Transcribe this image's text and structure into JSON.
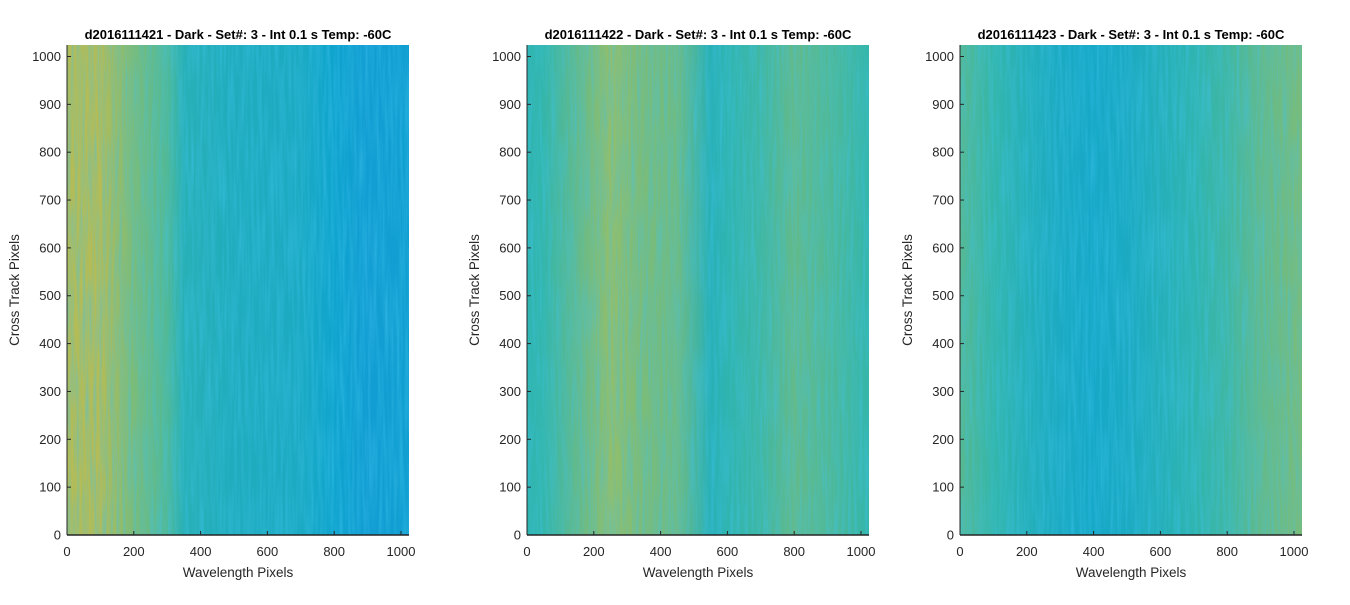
{
  "chart_data": [
    {
      "type": "heatmap",
      "title": "d2016111421 - Dark - Set#: 3 - Int 0.1 s Temp: -60C",
      "xlabel": "Wavelength Pixels",
      "ylabel": "Cross Track Pixels",
      "xlim": [
        0,
        1024
      ],
      "ylim": [
        0,
        1024
      ],
      "xticks": [
        0,
        200,
        400,
        600,
        800,
        1000
      ],
      "yticks": [
        0,
        100,
        200,
        300,
        400,
        500,
        600,
        700,
        800,
        900,
        1000
      ],
      "colormap": "parula",
      "column_intensity_profile": {
        "x": [
          0,
          100,
          200,
          300,
          350,
          500,
          700,
          800,
          900,
          1024
        ],
        "level": [
          0.72,
          0.72,
          0.62,
          0.55,
          0.45,
          0.42,
          0.4,
          0.35,
          0.32,
          0.33
        ]
      }
    },
    {
      "type": "heatmap",
      "title": "d2016111422 - Dark - Set#: 3 - Int 0.1 s Temp: -60C",
      "xlabel": "Wavelength Pixels",
      "ylabel": "Cross Track Pixels",
      "xlim": [
        0,
        1024
      ],
      "ylim": [
        0,
        1024
      ],
      "xticks": [
        0,
        200,
        400,
        600,
        800,
        1000
      ],
      "yticks": [
        0,
        100,
        200,
        300,
        400,
        500,
        600,
        700,
        800,
        900,
        1000
      ],
      "colormap": "parula",
      "column_intensity_profile": {
        "x": [
          0,
          50,
          150,
          250,
          350,
          450,
          550,
          600,
          700,
          800,
          900,
          1024
        ],
        "level": [
          0.48,
          0.5,
          0.58,
          0.66,
          0.62,
          0.6,
          0.45,
          0.48,
          0.52,
          0.58,
          0.55,
          0.5
        ]
      }
    },
    {
      "type": "heatmap",
      "title": "d2016111423 - Dark - Set#: 3 - Int 0.1 s Temp: -60C",
      "xlabel": "Wavelength Pixels",
      "ylabel": "Cross Track Pixels",
      "xlim": [
        0,
        1024
      ],
      "ylim": [
        0,
        1024
      ],
      "xticks": [
        0,
        200,
        400,
        600,
        800,
        1000
      ],
      "yticks": [
        0,
        100,
        200,
        300,
        400,
        500,
        600,
        700,
        800,
        900,
        1000
      ],
      "colormap": "parula",
      "column_intensity_profile": {
        "x": [
          0,
          100,
          200,
          300,
          400,
          500,
          600,
          700,
          800,
          900,
          1024
        ],
        "level": [
          0.56,
          0.5,
          0.44,
          0.4,
          0.38,
          0.4,
          0.44,
          0.48,
          0.52,
          0.58,
          0.62
        ]
      }
    }
  ]
}
